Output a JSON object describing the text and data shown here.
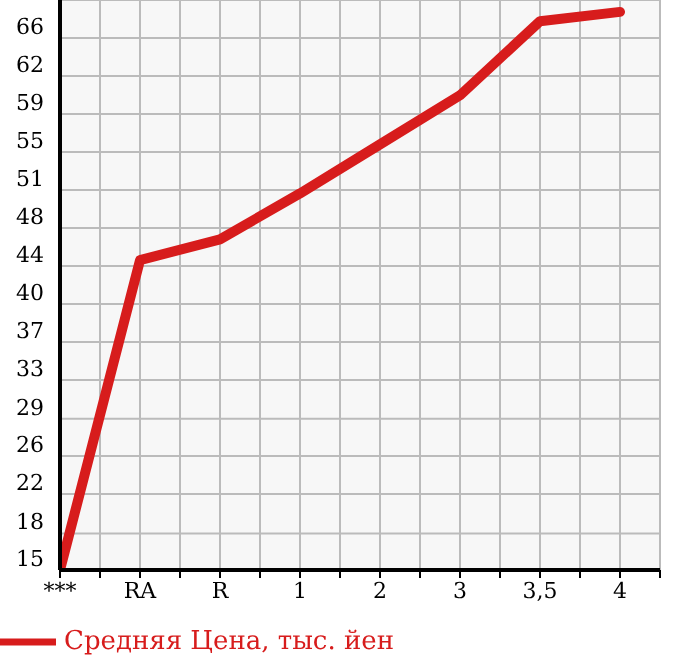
{
  "chart_data": {
    "type": "line",
    "categories": [
      "***",
      "RA",
      "R",
      "1",
      "2",
      "3",
      "3,5",
      "4"
    ],
    "series": [
      {
        "name": "Средняя Цена, тыс. йен",
        "color": "#d71c1c",
        "values": [
          15,
          44.7,
          46.7,
          51.1,
          55.8,
          60.5,
          67.6,
          68.5
        ]
      }
    ],
    "ylim": [
      15,
      69.64
    ],
    "yticks": [
      15,
      {
        "value": 18.49,
        "label": "18"
      },
      {
        "value": 22.29,
        "label": "22"
      },
      {
        "value": 25.93,
        "label": "26"
      },
      {
        "value": 29.49,
        "label": "29"
      },
      {
        "value": 33.21,
        "label": "33"
      },
      {
        "value": 36.86,
        "label": "37"
      },
      {
        "value": 40.5,
        "label": "40"
      },
      {
        "value": 44.14,
        "label": "44"
      },
      {
        "value": 47.79,
        "label": "48"
      },
      {
        "value": 51.43,
        "label": "51"
      },
      {
        "value": 55.07,
        "label": "55"
      },
      {
        "value": 58.71,
        "label": "59"
      },
      {
        "value": 62.36,
        "label": "62"
      },
      66
    ],
    "grid": true,
    "legend": "bottom left",
    "marker": "none",
    "line_style": "solid"
  }
}
